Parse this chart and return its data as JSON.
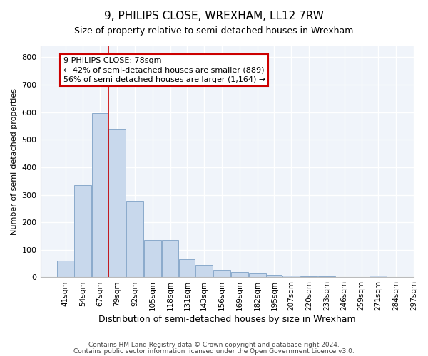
{
  "title1": "9, PHILIPS CLOSE, WREXHAM, LL12 7RW",
  "title2": "Size of property relative to semi-detached houses in Wrexham",
  "xlabel": "Distribution of semi-detached houses by size in Wrexham",
  "ylabel": "Number of semi-detached properties",
  "footer1": "Contains HM Land Registry data © Crown copyright and database right 2024.",
  "footer2": "Contains public sector information licensed under the Open Government Licence v3.0.",
  "annotation_title": "9 PHILIPS CLOSE: 78sqm",
  "annotation_line1": "← 42% of semi-detached houses are smaller (889)",
  "annotation_line2": "56% of semi-detached houses are larger (1,164) →",
  "bar_edges": [
    41,
    54,
    67,
    79,
    92,
    105,
    118,
    131,
    143,
    156,
    169,
    182,
    195,
    207,
    220,
    233,
    246,
    259,
    271,
    284,
    297
  ],
  "bar_heights": [
    60,
    335,
    597,
    540,
    275,
    137,
    137,
    67,
    45,
    27,
    20,
    15,
    10,
    7,
    5,
    5,
    0,
    0,
    7,
    0,
    0
  ],
  "bar_color": "#c8d8ec",
  "bar_edge_color": "#8aaacb",
  "vline_color": "#cc0000",
  "annotation_box_color": "#cc0000",
  "plot_bg_color": "#f0f4fa",
  "fig_bg_color": "#ffffff",
  "ylim": [
    0,
    840
  ],
  "yticks": [
    0,
    100,
    200,
    300,
    400,
    500,
    600,
    700,
    800
  ],
  "title1_fontsize": 11,
  "title2_fontsize": 9,
  "xlabel_fontsize": 9,
  "ylabel_fontsize": 8,
  "tick_fontsize": 8,
  "xtick_fontsize": 7.5,
  "footer_fontsize": 6.5,
  "annot_fontsize": 8
}
